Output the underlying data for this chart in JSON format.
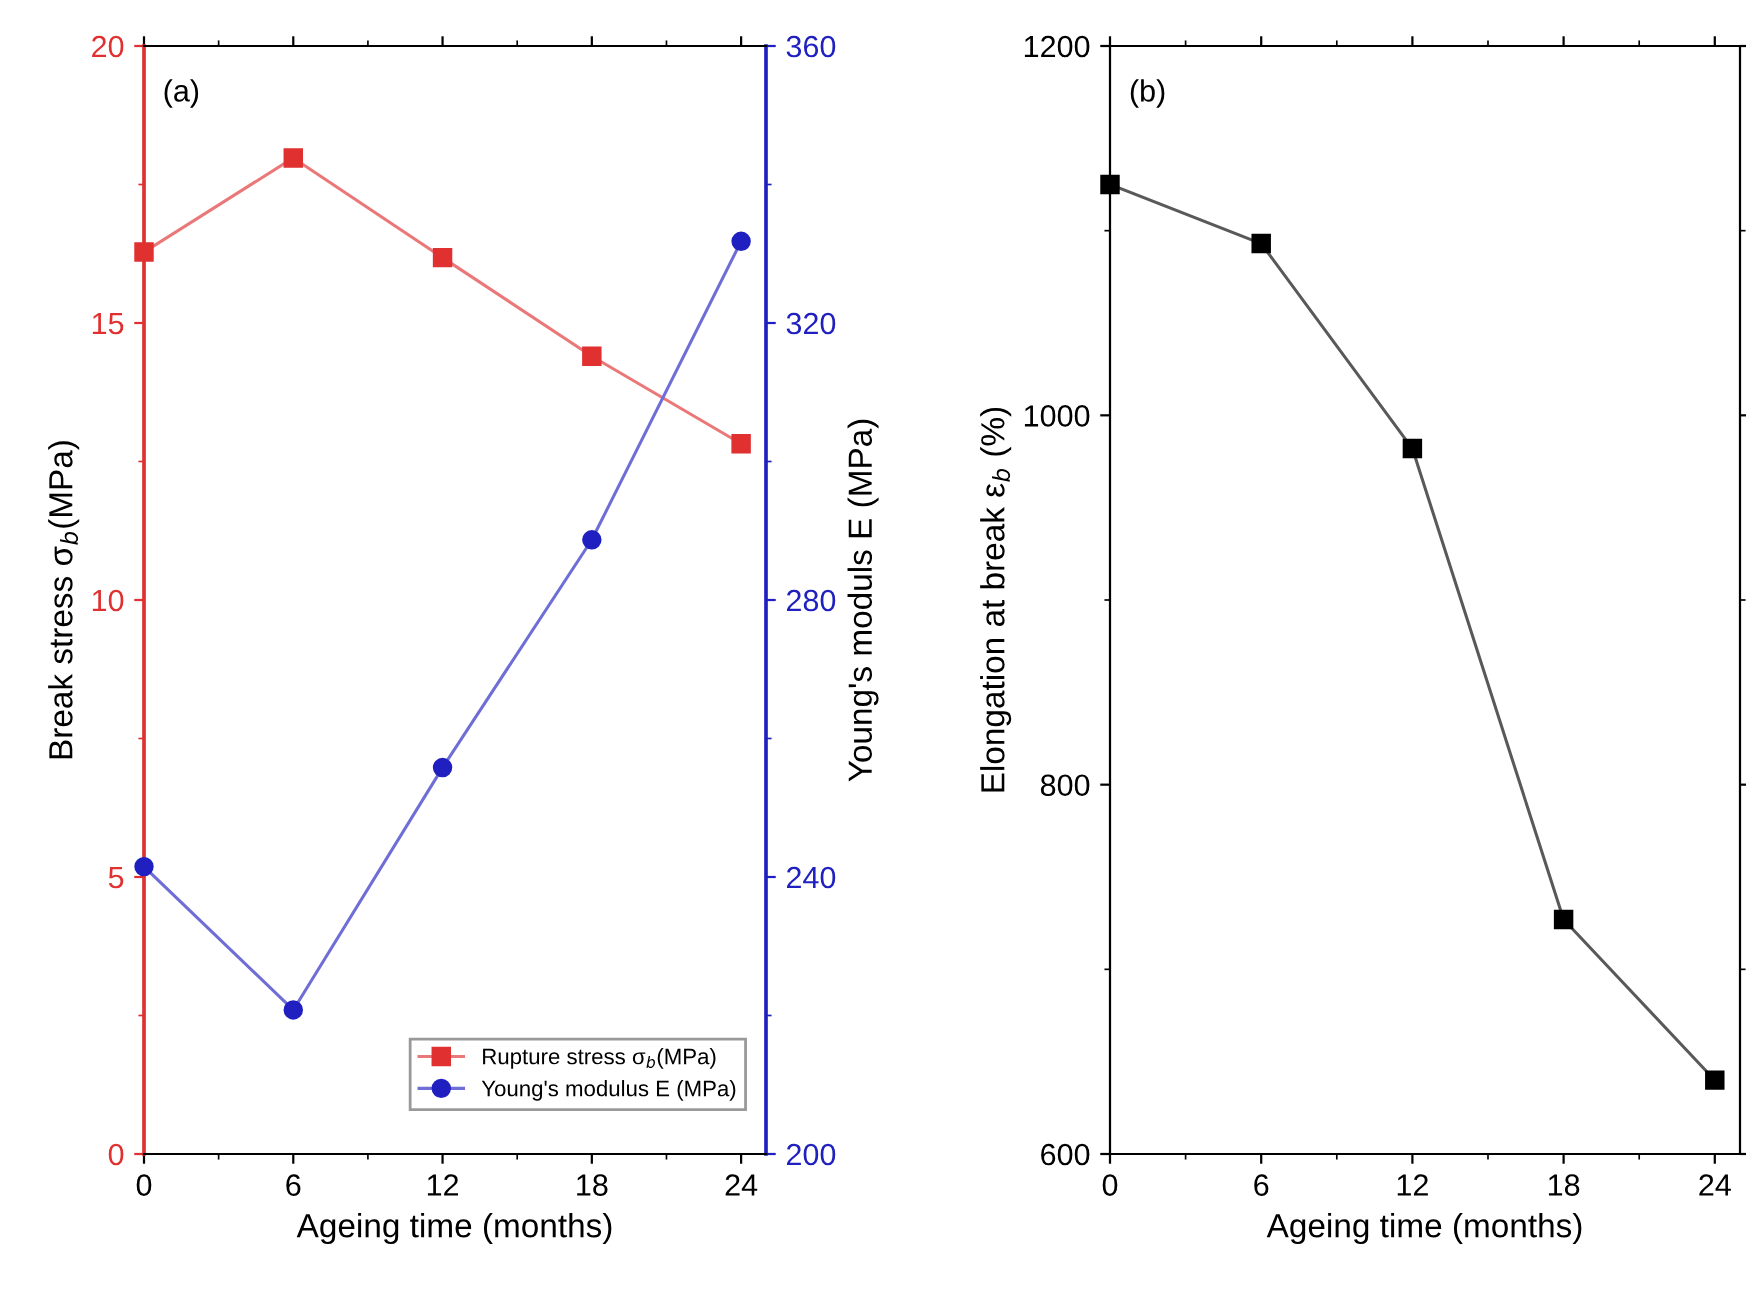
{
  "chart_data": [
    {
      "type": "line",
      "xlabel": "Ageing time (months)",
      "ylabel": "Break stress σ$_{b}$(MPa)",
      "y2label": "Young's moduls E (MPa)",
      "annotations": [
        "(a)"
      ],
      "x": [
        0,
        6,
        12,
        18,
        24
      ],
      "xlim": [
        0,
        25
      ],
      "xticks": [
        0,
        6,
        12,
        18,
        24
      ],
      "ylim": [
        0,
        20
      ],
      "yticks": [
        0,
        5,
        10,
        15,
        20
      ],
      "y2lim": [
        200,
        360
      ],
      "y2ticks": [
        200,
        240,
        280,
        320,
        360
      ],
      "legend": "bottom right",
      "grid": false,
      "series": [
        {
          "name": "Rupture stress σ$_{b}$(MPa)",
          "color": "#e03030",
          "marker": "square",
          "values": [
            16.28,
            17.98,
            16.18,
            14.4,
            12.82
          ]
        },
        {
          "name": "Young's modulus E (MPa)",
          "color": "#2020c0",
          "marker": "circle",
          "axis": "y2",
          "values": [
            241.5,
            220.8,
            255.8,
            288.7,
            331.8
          ]
        }
      ]
    },
    {
      "type": "line",
      "xlabel": "Ageing time (months)",
      "ylabel": "Elongation at break ε$_{b}$ (%)",
      "annotations": [
        "(b)"
      ],
      "x": [
        0,
        6,
        12,
        18,
        24
      ],
      "xlim": [
        0,
        25
      ],
      "xticks": [
        0,
        6,
        12,
        18,
        24
      ],
      "ylim": [
        600,
        1200
      ],
      "yticks": [
        600,
        800,
        1000,
        1200
      ],
      "grid": false,
      "legend": false,
      "series": [
        {
          "color": "#000000",
          "marker": "square",
          "values": [
            1125,
            1093,
            982,
            727,
            640
          ]
        }
      ]
    }
  ]
}
